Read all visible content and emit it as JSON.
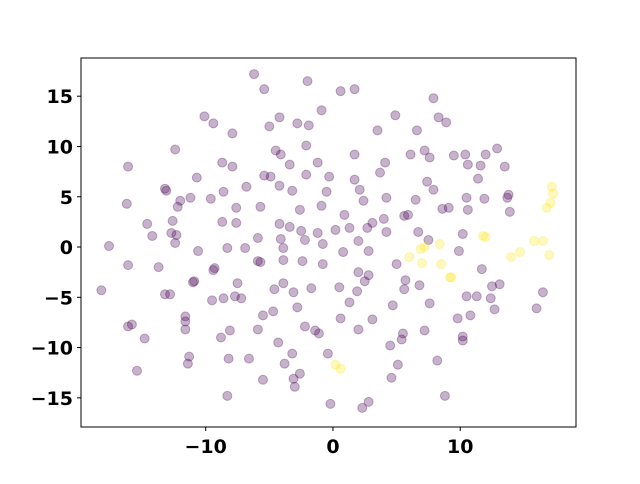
{
  "chart_data": {
    "type": "scatter",
    "xlim": [
      -19.8,
      19.1
    ],
    "ylim": [
      -17.9,
      18.8
    ],
    "xticks": [
      {
        "value": -10,
        "label": "−10"
      },
      0,
      10
    ],
    "yticks": [
      {
        "value": -15,
        "label": "−15"
      },
      {
        "value": -10,
        "label": "−10"
      },
      {
        "value": -5,
        "label": "−5"
      },
      0,
      5,
      10,
      15
    ],
    "grid": false,
    "opacity": 0.3,
    "series": [
      {
        "color": "#440154",
        "x": [
          -18.2,
          -17.6,
          -16.2,
          -16.1,
          -16.1,
          -15.8,
          -16.1,
          -15.4,
          -14.8,
          -14.6,
          -14.2,
          -13.7,
          -13.2,
          -13.1,
          -13.2,
          -12.8,
          -12.7,
          -12.6,
          -12.4,
          -12.4,
          -12.2,
          -12.3,
          -12.0,
          -11.6,
          -11.6,
          -11.6,
          -11.4,
          -11.3,
          -11.2,
          -11.0,
          -10.9,
          -10.7,
          -10.6,
          -10.1,
          -9.6,
          -9.5,
          -9.4,
          -9.3,
          -9.4,
          -8.8,
          -8.7,
          -8.7,
          -8.6,
          -8.6,
          -8.3,
          -8.2,
          -8.1,
          -7.9,
          -7.7,
          -7.9,
          -7.6,
          -7.6,
          -7.5,
          -7.2,
          -6.9,
          -6.8,
          -6.6,
          -8.3,
          -6.2,
          -5.9,
          -5.9,
          -5.9,
          -5.7,
          -5.7,
          -5.5,
          -5.5,
          -5.4,
          -5.4,
          -5.0,
          -4.9,
          -4.7,
          -4.6,
          -4.5,
          -4.3,
          -4.1,
          -4.2,
          -4.2,
          -4.2,
          -4.1,
          -3.9,
          -3.9,
          -3.9,
          -3.8,
          -3.4,
          -3.4,
          -3.2,
          -3.2,
          -3.1,
          -3.0,
          -3.1,
          -2.8,
          -2.8,
          -2.6,
          -2.6,
          -2.5,
          -2.4,
          -2.2,
          -2.1,
          -2.1,
          -2.2,
          -2.0,
          -1.9,
          -1.7,
          -1.4,
          -1.2,
          -1.2,
          -1.1,
          -0.9,
          -0.9,
          -0.8,
          -0.8,
          -0.5,
          -0.4,
          -0.3,
          -0.2,
          0.2,
          0.5,
          0.6,
          0.6,
          0.8,
          0.9,
          1.3,
          1.3,
          1.7,
          1.7,
          1.7,
          1.9,
          2.0,
          2.0,
          2.0,
          2.1,
          2.3,
          2.4,
          2.5,
          2.7,
          2.8,
          2.8,
          2.8,
          3.1,
          3.1,
          3.5,
          3.7,
          4.0,
          4.1,
          4.2,
          4.2,
          4.5,
          4.6,
          4.7,
          4.9,
          5.0,
          5.1,
          5.4,
          5.5,
          5.6,
          5.6,
          5.7,
          5.9,
          6.1,
          6.5,
          6.6,
          6.7,
          6.8,
          7.2,
          7.2,
          7.4,
          7.6,
          7.5,
          7.6,
          7.9,
          7.9,
          8.2,
          8.3,
          8.6,
          8.8,
          8.9,
          9.1,
          9.5,
          9.9,
          9.8,
          10.2,
          10.2,
          10.2,
          10.4,
          10.5,
          10.6,
          10.6,
          10.5,
          10.8,
          11.3,
          11.4,
          11.6,
          11.7,
          11.9,
          12.0,
          12.4,
          12.5,
          12.7,
          12.9,
          13.1,
          13.5,
          13.7,
          13.8,
          13.9,
          16.0,
          16.5
        ],
        "y": [
          -4.3,
          0.1,
          4.3,
          -1.8,
          8.0,
          -7.7,
          -7.9,
          -12.3,
          -9.1,
          2.3,
          1.1,
          -2.0,
          5.8,
          5.6,
          -4.7,
          -4.7,
          1.4,
          2.6,
          0.4,
          9.7,
          4.0,
          1.2,
          4.6,
          -6.9,
          -7.4,
          -8.2,
          -11.6,
          -10.9,
          4.9,
          -3.5,
          -3.4,
          6.9,
          -0.4,
          13.0,
          4.8,
          -5.3,
          -2.3,
          -2.1,
          12.3,
          -9.0,
          8.4,
          2.5,
          5.5,
          -5.1,
          -0.1,
          -11.1,
          -8.3,
          8.0,
          -4.9,
          11.3,
          2.4,
          3.9,
          -3.6,
          -5.1,
          -0.1,
          6.0,
          -11.1,
          -14.8,
          17.2,
          -8.2,
          0.9,
          -1.4,
          -1.5,
          4.0,
          -6.8,
          -13.2,
          15.7,
          7.1,
          12.0,
          7.0,
          -6.4,
          -4.2,
          9.6,
          -9.5,
          9.2,
          2.3,
          6.1,
          12.9,
          0.8,
          -0.1,
          -1.3,
          -3.6,
          -11.6,
          8.2,
          2.0,
          -10.6,
          5.6,
          -13.1,
          -13.9,
          -4.5,
          -6.0,
          12.3,
          3.7,
          -12.6,
          1.6,
          -1.4,
          -7.9,
          7.2,
          10.1,
          0.7,
          16.5,
          12.1,
          -4.1,
          -8.3,
          8.4,
          1.4,
          -8.6,
          13.6,
          4.1,
          0.3,
          -1.7,
          5.5,
          -10.6,
          7.0,
          -15.6,
          1.7,
          -4.0,
          15.5,
          -7.1,
          -0.5,
          3.2,
          -5.5,
          1.9,
          9.2,
          6.7,
          15.7,
          -4.4,
          -2.5,
          -8.2,
          0.6,
          5.7,
          -16.0,
          4.6,
          -3.4,
          1.9,
          -15.4,
          -2.8,
          -0.4,
          2.4,
          -7.2,
          11.6,
          7.4,
          2.8,
          8.4,
          1.5,
          4.9,
          -9.8,
          -13.0,
          -5.8,
          13.1,
          -1.7,
          -11.7,
          -9.2,
          -8.6,
          -4.2,
          3.1,
          -3.3,
          3.2,
          9.2,
          4.7,
          11.6,
          1.5,
          -3.8,
          9.6,
          -8.3,
          6.5,
          8.9,
          0.7,
          -5.6,
          14.8,
          5.7,
          -11.3,
          12.9,
          3.8,
          -14.8,
          12.4,
          3.9,
          9.1,
          -0.4,
          -7.1,
          -8.9,
          -9.3,
          1.3,
          9.2,
          -4.9,
          8.2,
          3.7,
          4.9,
          -6.8,
          -4.9,
          6.8,
          8.1,
          -2.2,
          4.8,
          9.2,
          -5.1,
          -3.9,
          -6.2,
          9.8,
          -3.7,
          8.0,
          4.9,
          5.2,
          3.5,
          -6.1,
          -4.5
        ]
      },
      {
        "color": "#fde725",
        "x": [
          0.2,
          0.6,
          6.0,
          6.9,
          7.0,
          7.2,
          8.4,
          8.5,
          9.2,
          9.3,
          11.8,
          12.0,
          14.0,
          14.7,
          15.8,
          16.5,
          16.8,
          17.0,
          17.1,
          17.2,
          17.3
        ],
        "y": [
          -11.7,
          -12.1,
          -1.0,
          -0.2,
          -1.6,
          0.0,
          0.3,
          -1.7,
          -3.0,
          -3.0,
          1.1,
          1.0,
          -1.0,
          -0.5,
          0.6,
          0.6,
          3.9,
          -0.8,
          4.4,
          6.0,
          5.3
        ]
      }
    ]
  }
}
